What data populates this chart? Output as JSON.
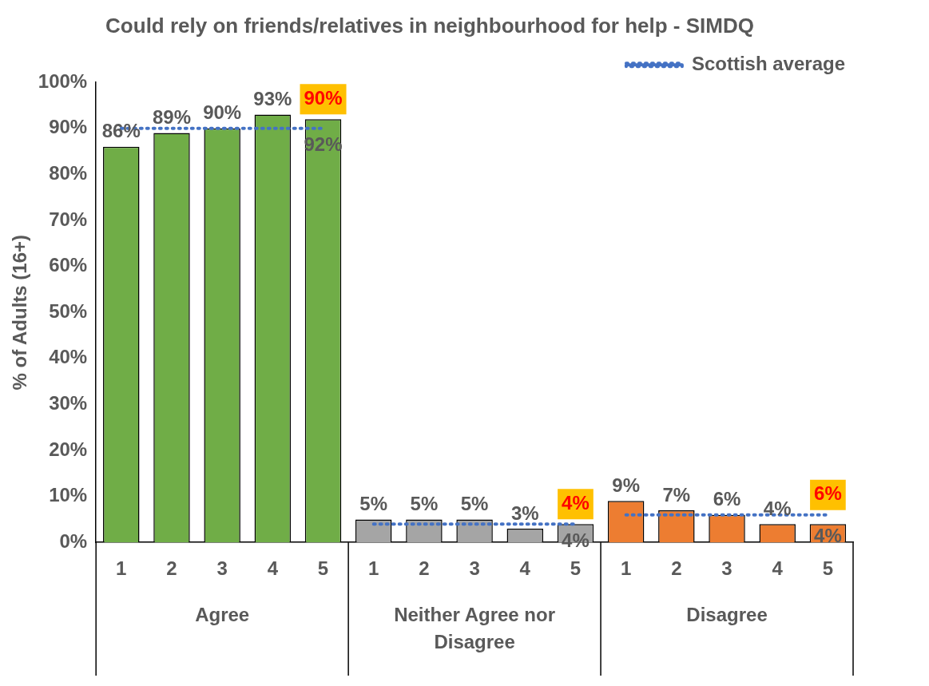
{
  "chart_data": {
    "type": "bar",
    "title": "Could rely on friends/relatives in neighbourhood for help - SIMDQ",
    "ylabel": "% of Adults (16+)",
    "categories": [
      "1",
      "2",
      "3",
      "4",
      "5",
      "1",
      "2",
      "3",
      "4",
      "5",
      "1",
      "2",
      "3",
      "4",
      "5"
    ],
    "annotations": [
      "Agree",
      "Neither Agree nor Disagree",
      "Disagree"
    ],
    "series": [
      {
        "values": [
          86,
          89,
          90,
          93,
          92,
          5,
          5,
          5,
          3,
          4,
          9,
          7,
          6,
          4,
          4
        ],
        "colors": [
          "#70ad47",
          "#70ad47",
          "#70ad47",
          "#70ad47",
          "#70ad47",
          "#a5a5a5",
          "#a5a5a5",
          "#a5a5a5",
          "#a5a5a5",
          "#a5a5a5",
          "#ed7d31",
          "#ed7d31",
          "#ed7d31",
          "#ed7d31",
          "#ed7d31"
        ],
        "value_labels": [
          "86%",
          "89%",
          "90%",
          "93%",
          "92%",
          "5%",
          "5%",
          "5%",
          "3%",
          "4%",
          "9%",
          "7%",
          "6%",
          "4%",
          "4%"
        ]
      },
      {
        "type": "line",
        "name": "Scottish average",
        "color": "#4472c4",
        "line_style": "dotted",
        "marker": "none",
        "values": [
          90,
          90,
          90,
          90,
          90,
          null,
          null,
          null,
          null,
          null,
          null,
          null,
          null,
          null,
          null
        ],
        "value_labels": [
          null,
          null,
          null,
          null,
          "90%",
          null,
          null,
          null,
          null,
          null,
          null,
          null,
          null,
          null,
          null
        ]
      },
      {
        "type": "line",
        "color": "#4472c4",
        "line_style": "dotted",
        "marker": "none",
        "values": [
          null,
          null,
          null,
          null,
          null,
          4,
          4,
          4,
          4,
          4,
          null,
          null,
          null,
          null,
          null
        ],
        "value_labels": [
          null,
          null,
          null,
          null,
          null,
          null,
          null,
          null,
          null,
          "4%",
          null,
          null,
          null,
          null,
          null
        ]
      },
      {
        "type": "line",
        "color": "#4472c4",
        "line_style": "dotted",
        "marker": "none",
        "values": [
          null,
          null,
          null,
          null,
          null,
          null,
          null,
          null,
          null,
          null,
          6,
          6,
          6,
          6,
          6
        ],
        "value_labels": [
          null,
          null,
          null,
          null,
          null,
          null,
          null,
          null,
          null,
          null,
          null,
          null,
          null,
          null,
          "6%"
        ]
      }
    ],
    "ylim": [
      0,
      100
    ],
    "yticks": [
      {
        "value": 0,
        "label": "0%"
      },
      {
        "value": 10,
        "label": "10%"
      },
      {
        "value": 20,
        "label": "20%"
      },
      {
        "value": 30,
        "label": "30%"
      },
      {
        "value": 40,
        "label": "40%"
      },
      {
        "value": 50,
        "label": "50%"
      },
      {
        "value": 60,
        "label": "60%"
      },
      {
        "value": 70,
        "label": "70%"
      },
      {
        "value": 80,
        "label": "80%"
      },
      {
        "value": 90,
        "label": "90%"
      },
      {
        "value": 100,
        "label": "100%"
      }
    ],
    "grid": false,
    "legend": "top right"
  }
}
